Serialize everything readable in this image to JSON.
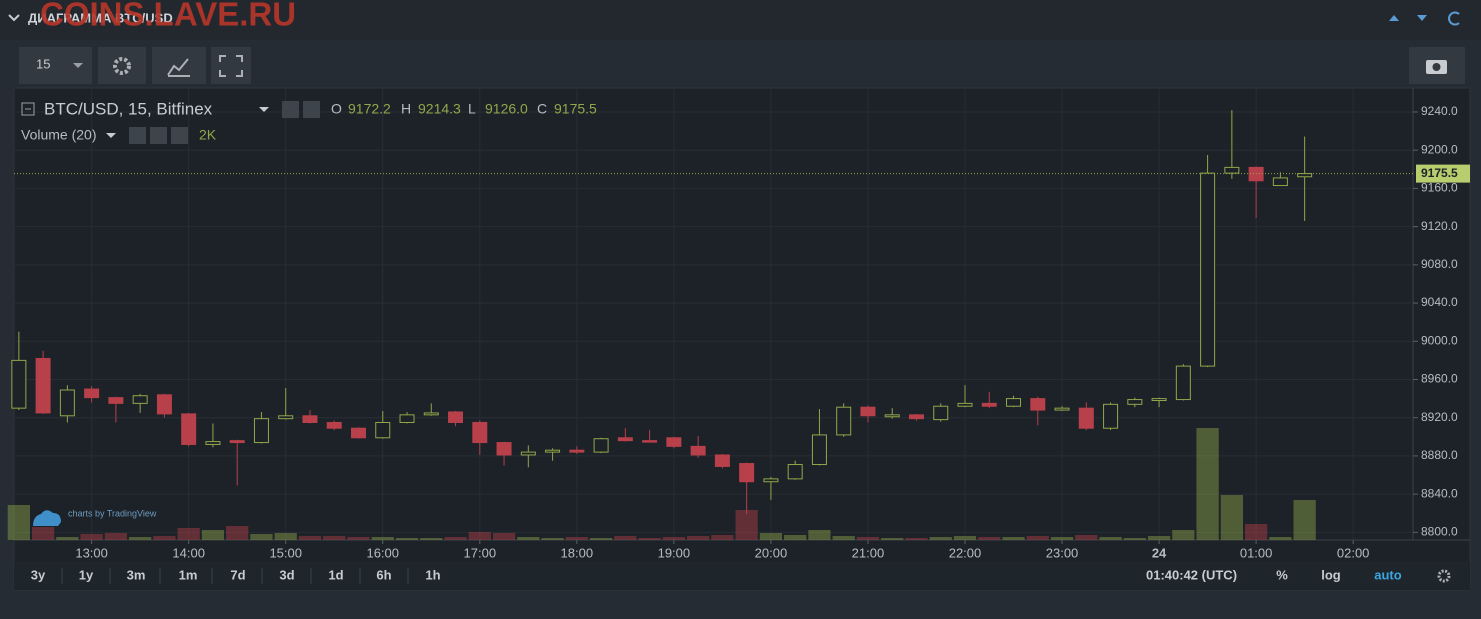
{
  "header_title": "ДИАГРАММА BTC/USD",
  "watermark": "COINS.LAVE.RU",
  "interval": "15",
  "credit": "charts by TradingView",
  "clock": "01:40:42 (UTC)",
  "ranges": [
    "3y",
    "1y",
    "3m",
    "1m",
    "7d",
    "3d",
    "1d",
    "6h",
    "1h"
  ],
  "scale_buttons": [
    "%",
    "log",
    "auto"
  ],
  "chart_data": {
    "type": "candlestick",
    "title": "BTC/USD, 15, Bitfinex",
    "ohlc_legend": [
      {
        "letter": "O",
        "label": "9172.2"
      },
      {
        "letter": "H",
        "label": "9214.3"
      },
      {
        "letter": "L",
        "label": "9126.0"
      },
      {
        "letter": "C",
        "label": "9175.5"
      }
    ],
    "volume_name": "Volume (20)",
    "volume_last_label": "2K",
    "x": [
      "12:15",
      "12:30",
      "12:45",
      "13:00",
      "13:15",
      "13:30",
      "13:45",
      "14:00",
      "14:15",
      "14:30",
      "14:45",
      "15:00",
      "15:15",
      "15:30",
      "15:45",
      "16:00",
      "16:15",
      "16:30",
      "16:45",
      "17:00",
      "17:15",
      "17:30",
      "17:45",
      "18:00",
      "18:15",
      "18:30",
      "18:45",
      "19:00",
      "19:15",
      "19:30",
      "19:45",
      "20:00",
      "20:15",
      "20:30",
      "20:45",
      "21:00",
      "21:15",
      "21:30",
      "21:45",
      "22:00",
      "22:15",
      "22:30",
      "22:45",
      "23:00",
      "23:15",
      "23:30",
      "23:45",
      "00:00",
      "00:15",
      "00:30",
      "00:45",
      "01:00",
      "01:15",
      "01:30"
    ],
    "open": [
      8930,
      8982,
      8922,
      8950,
      8941,
      8935,
      8944,
      8924,
      8892,
      8896,
      8894,
      8919,
      8922,
      8915,
      8909,
      8899,
      8915,
      8923,
      8926,
      8915,
      8894,
      8881,
      8884,
      8886,
      8884,
      8899,
      8896,
      8899,
      8890,
      8881,
      8872,
      8853,
      8856,
      8871,
      8902,
      8931,
      8921,
      8923,
      8918,
      8932,
      8935,
      8932,
      8940,
      8928,
      8930,
      8909,
      8934,
      8938,
      8939,
      8974,
      9176,
      9182,
      9163,
      9172.2
    ],
    "high": [
      9010,
      8990,
      8954,
      8953,
      8942,
      8945,
      8945,
      8925,
      8914,
      8897,
      8926,
      8951,
      8928,
      8917,
      8910,
      8927,
      8926,
      8935,
      8927,
      8917,
      8895,
      8891,
      8888,
      8890,
      8899,
      8909,
      8907,
      8900,
      8901,
      8882,
      8873,
      8858,
      8875,
      8929,
      8935,
      8933,
      8930,
      8924,
      8935,
      8954,
      8947,
      8943,
      8942,
      8932,
      8936,
      8936,
      8941,
      8941,
      8976,
      9195,
      9242,
      9183,
      9177,
      9214.3
    ],
    "low": [
      8928,
      8924,
      8915,
      8936,
      8915,
      8925,
      8920,
      8890,
      8889,
      8849,
      8893,
      8918,
      8914,
      8907,
      8898,
      8898,
      8914,
      8922,
      8911,
      8881,
      8870,
      8868,
      8875,
      8882,
      8883,
      8895,
      8894,
      8888,
      8878,
      8867,
      8819,
      8834,
      8855,
      8870,
      8900,
      8915,
      8919,
      8917,
      8916,
      8931,
      8930,
      8931,
      8912,
      8927,
      8907,
      8907,
      8931,
      8931,
      8938,
      8973,
      9170,
      9129,
      9163,
      9126
    ],
    "close": [
      8980,
      8925,
      8949,
      8941,
      8935,
      8943,
      8924,
      8892,
      8895,
      8894,
      8919,
      8922,
      8915,
      8909,
      8899,
      8915,
      8923,
      8925,
      8915,
      8894,
      8881,
      8884,
      8886,
      8884,
      8898,
      8896,
      8895,
      8890,
      8881,
      8869,
      8853,
      8856,
      8871,
      8902,
      8931,
      8922,
      8923,
      8919,
      8932,
      8935,
      8932,
      8940,
      8928,
      8930,
      8909,
      8934,
      8939,
      8940,
      8974,
      9176,
      9182,
      9168,
      9171,
      9175.5
    ],
    "volume": [
      1750,
      650,
      150,
      300,
      350,
      150,
      200,
      600,
      500,
      700,
      300,
      350,
      200,
      200,
      150,
      150,
      100,
      100,
      150,
      400,
      350,
      150,
      100,
      150,
      100,
      200,
      100,
      150,
      200,
      250,
      1500,
      350,
      250,
      500,
      200,
      150,
      100,
      100,
      150,
      200,
      150,
      150,
      200,
      150,
      250,
      150,
      100,
      200,
      500,
      5600,
      2250,
      800,
      150,
      2000
    ],
    "up_color": "#8fa84a",
    "down_color": "#b8404a",
    "xlim": [
      "12:12",
      "02:37"
    ],
    "xticks": [
      "13:00",
      "14:00",
      "15:00",
      "16:00",
      "17:00",
      "18:00",
      "19:00",
      "20:00",
      "21:00",
      "22:00",
      "23:00",
      {
        "value": "00:00",
        "label": "24"
      },
      "01:00",
      "02:00"
    ],
    "ylim": [
      8792,
      9263
    ],
    "yticks": [
      {
        "value": 8800,
        "label": "8800.0"
      },
      {
        "value": 8840,
        "label": "8840.0"
      },
      {
        "value": 8880,
        "label": "8880.0"
      },
      {
        "value": 8920,
        "label": "8920.0"
      },
      {
        "value": 8960,
        "label": "8960.0"
      },
      {
        "value": 9000,
        "label": "9000.0"
      },
      {
        "value": 9040,
        "label": "9040.0"
      },
      {
        "value": 9080,
        "label": "9080.0"
      },
      {
        "value": 9120,
        "label": "9120.0"
      },
      {
        "value": 9160,
        "label": "9160.0"
      },
      {
        "value": 9200,
        "label": "9200.0"
      },
      {
        "value": 9240,
        "label": "9240.0"
      }
    ],
    "grid": true
  }
}
